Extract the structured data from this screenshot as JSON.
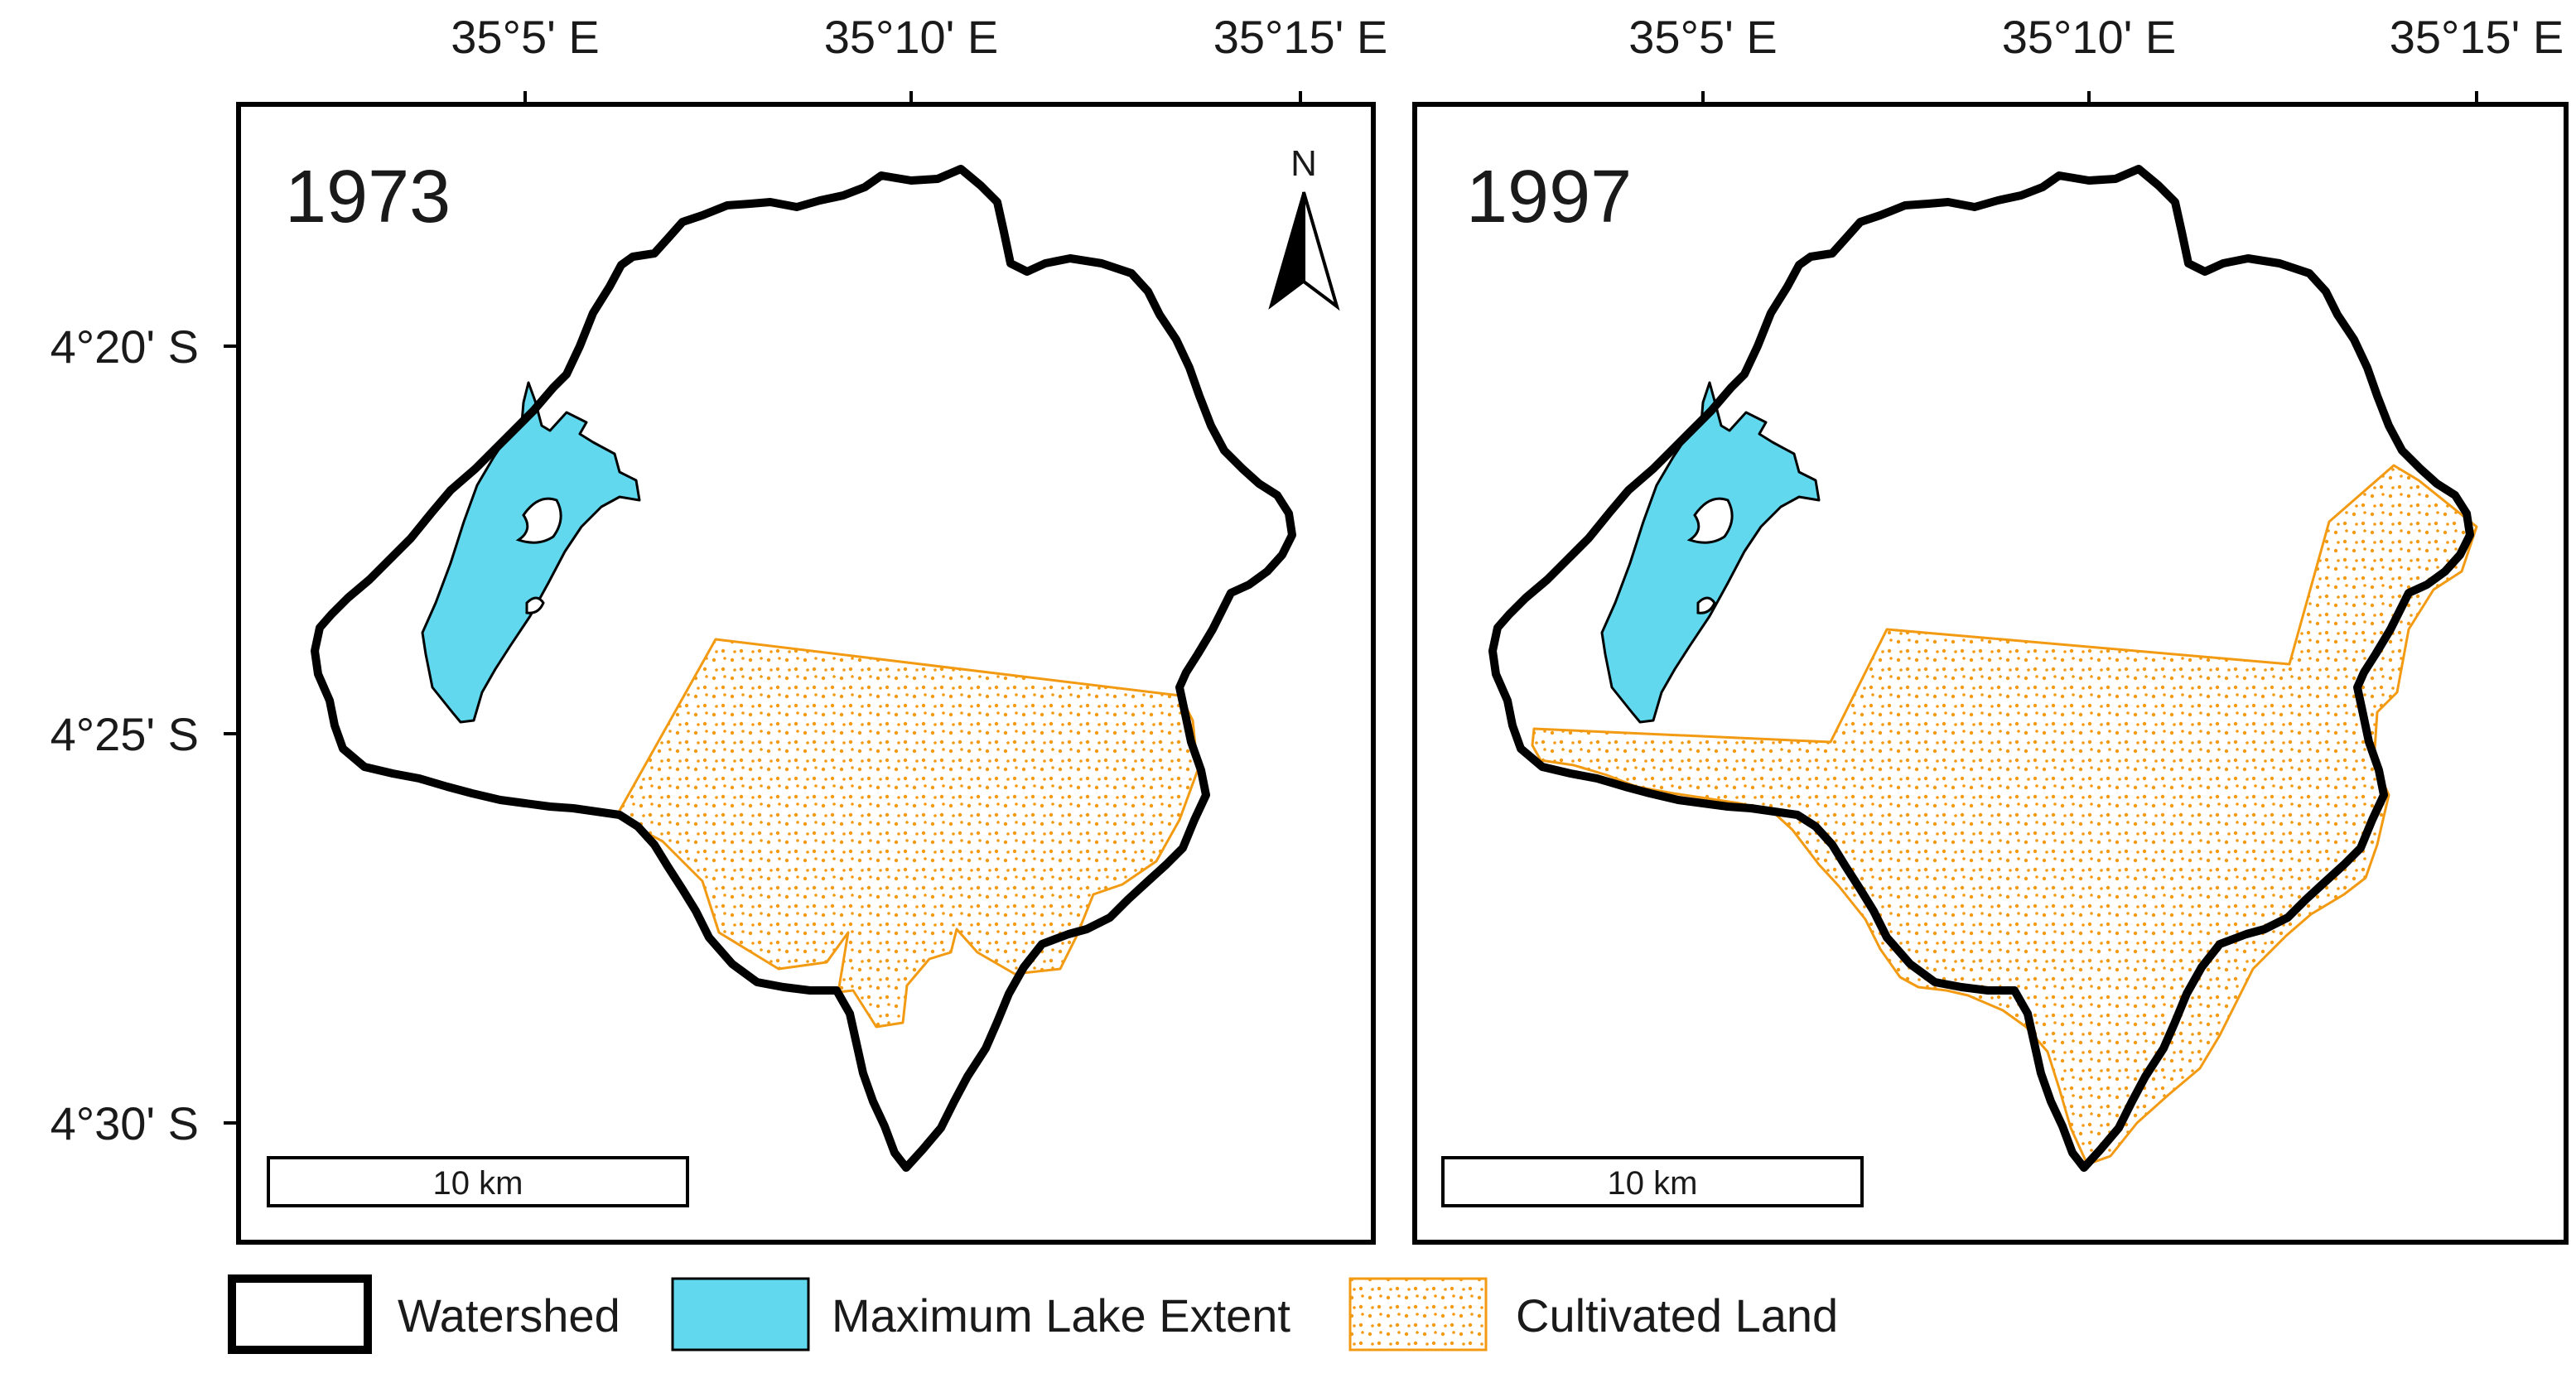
{
  "legend": {
    "items": [
      {
        "key": "watershed",
        "label": "Watershed"
      },
      {
        "key": "lake",
        "label": "Maximum Lake Extent"
      },
      {
        "key": "cultivated",
        "label": "Cultivated Land"
      }
    ]
  },
  "axes": {
    "longitude_ticks": [
      "35°5' E",
      "35°10' E",
      "35°15' E"
    ],
    "latitude_ticks": [
      "4°20' S",
      "4°25' S",
      "4°30' S"
    ]
  },
  "panels": [
    {
      "id": "left",
      "year": "1973",
      "scale_label": "10 km",
      "north_arrow": "N"
    },
    {
      "id": "right",
      "year": "1997",
      "scale_label": "10 km"
    }
  ],
  "colors": {
    "lake": "#62d8ee",
    "cultivated": "#f39a13",
    "watershed": "#000000"
  }
}
